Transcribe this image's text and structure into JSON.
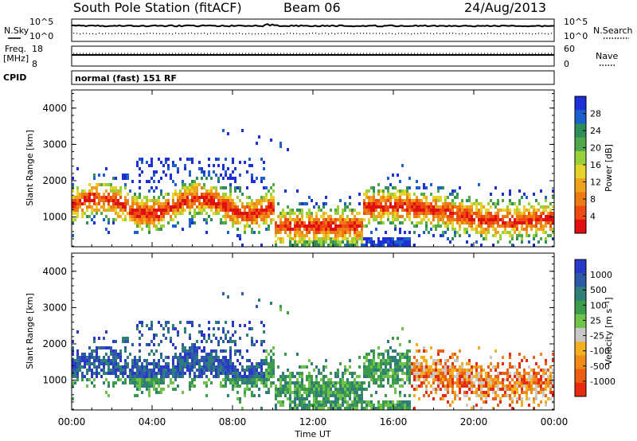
{
  "header": {
    "title": "South Pole Station (fitACF)",
    "beam": "Beam 06",
    "date": "24/Aug/2013"
  },
  "sidepanel": {
    "nsky_label": "N.Sky",
    "nsearch_label": "N.Search",
    "freq_label_line1": "Freq.",
    "freq_label_line2": "[MHz]",
    "nave_label": "Nave",
    "cpid_label": "CPID",
    "cpid_value": "normal (fast) 151 RF",
    "noise_left_ticks": [
      "10^5",
      "10^0"
    ],
    "noise_right_ticks": [
      "10^5",
      "10^0"
    ],
    "freq_ticks": [
      "18",
      "8"
    ],
    "nave_ticks": [
      "60",
      "0"
    ]
  },
  "colors": {
    "power_scale": [
      "#1f2fd6",
      "#1d5fcb",
      "#2f8d5a",
      "#4fa84a",
      "#9ad13a",
      "#e6d42a",
      "#f0a21e",
      "#ee7a12",
      "#ee4a12",
      "#e01010"
    ],
    "velocity_scale": [
      "#2a3ac8",
      "#2f5aa8",
      "#2f7e78",
      "#3d9c4a",
      "#6fc24a",
      "#c8c8c8",
      "#f2b020",
      "#f08a18",
      "#ec5e14",
      "#e82a10"
    ]
  },
  "chart_data": [
    {
      "type": "heatmap",
      "ylabel": "Slant Range [km]",
      "ylim": [
        180,
        4500
      ],
      "yticks": [
        "1000",
        "2000",
        "3000",
        "4000"
      ],
      "xlim": [
        "00:00",
        "24:00"
      ],
      "colorbar": {
        "label": "Power [dB]",
        "ticks": [
          "28",
          "24",
          "20",
          "16",
          "12",
          "8",
          "4"
        ]
      }
    },
    {
      "type": "heatmap",
      "xlabel": "Time UT",
      "ylabel": "Slant Range [km]",
      "ylim": [
        180,
        4500
      ],
      "yticks": [
        "1000",
        "2000",
        "3000",
        "4000"
      ],
      "xticks": [
        "00:00",
        "04:00",
        "08:00",
        "12:00",
        "16:00",
        "20:00",
        "00:00"
      ],
      "colorbar": {
        "label": "Velocity [m s⁻¹]",
        "ticks": [
          "1000",
          "500",
          "100",
          "25",
          "-25",
          "-100",
          "-500",
          "-1000"
        ]
      }
    }
  ]
}
